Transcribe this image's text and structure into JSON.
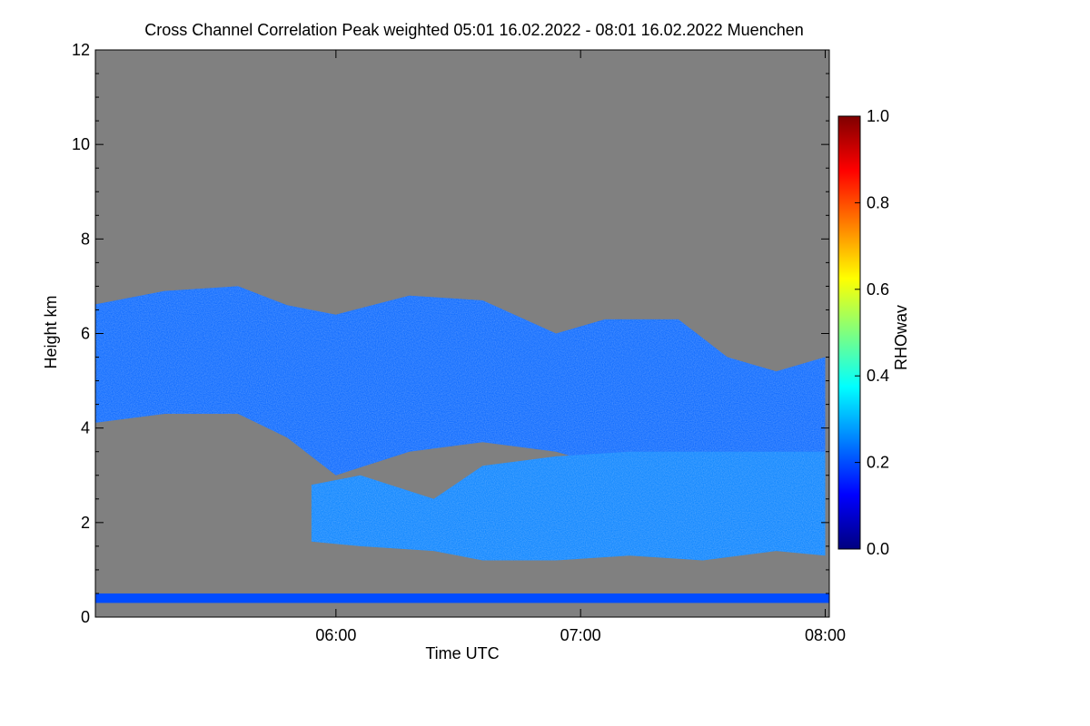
{
  "chart_data": {
    "type": "heatmap",
    "title": "Cross Channel Correlation Peak weighted   05:01 16.02.2022 - 08:01 16.02.2022 Muenchen",
    "xlabel": "Time UTC",
    "ylabel": "Height km",
    "x_range": [
      "05:01",
      "08:01"
    ],
    "x_ticks": [
      "06:00",
      "07:00",
      "08:00"
    ],
    "ylim": [
      0,
      12
    ],
    "y_ticks": [
      "0",
      "2",
      "4",
      "6",
      "8",
      "10",
      "12"
    ],
    "background_color": "#808080",
    "colorbar": {
      "label": "RHOwav",
      "range": [
        0.0,
        1.0
      ],
      "ticks": [
        "0.0",
        "0.2",
        "0.4",
        "0.6",
        "0.8",
        "1.0"
      ],
      "colormap": [
        "#00007f",
        "#0000ff",
        "#007fff",
        "#00ffff",
        "#7fff7f",
        "#ffff00",
        "#ff7f00",
        "#ff0000",
        "#7f0000"
      ]
    },
    "cloud_layers": [
      {
        "name": "",
        "typical_value": 0.22,
        "top_km": [
          [
            5.0,
            6.6
          ],
          [
            5.3,
            6.9
          ],
          [
            5.6,
            7.0
          ],
          [
            5.8,
            6.6
          ],
          [
            6.0,
            6.4
          ],
          [
            6.3,
            6.8
          ],
          [
            6.6,
            6.7
          ],
          [
            6.9,
            6.0
          ],
          [
            7.1,
            6.3
          ],
          [
            7.4,
            6.3
          ],
          [
            7.6,
            5.5
          ],
          [
            7.8,
            5.2
          ],
          [
            8.0,
            5.5
          ]
        ],
        "base_km": [
          [
            5.0,
            4.1
          ],
          [
            5.3,
            4.3
          ],
          [
            5.6,
            4.3
          ],
          [
            5.8,
            3.8
          ],
          [
            6.0,
            3.0
          ],
          [
            6.3,
            3.5
          ],
          [
            6.6,
            3.7
          ],
          [
            6.9,
            3.5
          ],
          [
            7.1,
            3.2
          ],
          [
            7.4,
            3.2
          ],
          [
            7.6,
            3.0
          ],
          [
            7.8,
            3.2
          ],
          [
            8.0,
            3.5
          ]
        ]
      },
      {
        "name": "",
        "typical_value": 0.25,
        "top_km": [
          [
            5.9,
            2.8
          ],
          [
            6.1,
            3.0
          ],
          [
            6.4,
            2.5
          ],
          [
            6.6,
            3.2
          ],
          [
            6.9,
            3.4
          ],
          [
            7.2,
            3.5
          ],
          [
            7.5,
            3.5
          ],
          [
            7.8,
            3.5
          ],
          [
            8.0,
            3.5
          ]
        ],
        "base_km": [
          [
            5.9,
            1.6
          ],
          [
            6.1,
            1.5
          ],
          [
            6.4,
            1.4
          ],
          [
            6.6,
            1.2
          ],
          [
            6.9,
            1.2
          ],
          [
            7.2,
            1.3
          ],
          [
            7.5,
            1.2
          ],
          [
            7.8,
            1.4
          ],
          [
            8.0,
            1.3
          ]
        ]
      }
    ],
    "surface_layer_km": [
      0.3,
      0.5
    ]
  }
}
